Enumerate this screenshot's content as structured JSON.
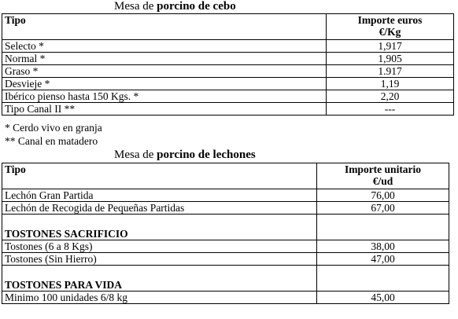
{
  "cebo": {
    "caption_prefix": "Mesa de ",
    "caption_bold": "porcino de cebo",
    "header_tipo": "Tipo",
    "header_importe_line1": "Importe euros",
    "header_importe_line2": "€/Kg",
    "rows": [
      {
        "tipo": "Selecto *",
        "importe": "1,917"
      },
      {
        "tipo": "Normal *",
        "importe": "1,905"
      },
      {
        "tipo": "Graso *",
        "importe": "1.917"
      },
      {
        "tipo": "Desvieje *",
        "importe": "1,19"
      },
      {
        "tipo": "Ibérico pienso hasta 150 Kgs. *",
        "importe": "2,20"
      },
      {
        "tipo": "Tipo Canal II **",
        "importe": "---"
      }
    ],
    "note1": "* Cerdo vivo en granja",
    "note2": "** Canal en matadero"
  },
  "lechones": {
    "caption_prefix": "Mesa de ",
    "caption_bold": "porcino de lechones",
    "header_tipo": "Tipo",
    "header_importe_line1": "Importe unitario",
    "header_importe_line2": "€/ud",
    "rows": [
      {
        "tipo": "Lechón Gran Partida",
        "importe": "76,00"
      },
      {
        "tipo": "Lechón de Recogida de Pequeñas Partidas",
        "importe": "67,00"
      }
    ],
    "section_sacrificio": "TOSTONES SACRIFICIO",
    "sacrificio_rows": [
      {
        "tipo": "Tostones (6 a 8 Kgs)",
        "importe": "38,00"
      },
      {
        "tipo": "Tostones  (Sin Hierro)",
        "importe": "47,00"
      }
    ],
    "section_vida": "TOSTONES PARA VIDA",
    "vida_rows": [
      {
        "tipo": "Minimo 100 unidades 6/8 kg",
        "importe": "45,00"
      }
    ]
  }
}
